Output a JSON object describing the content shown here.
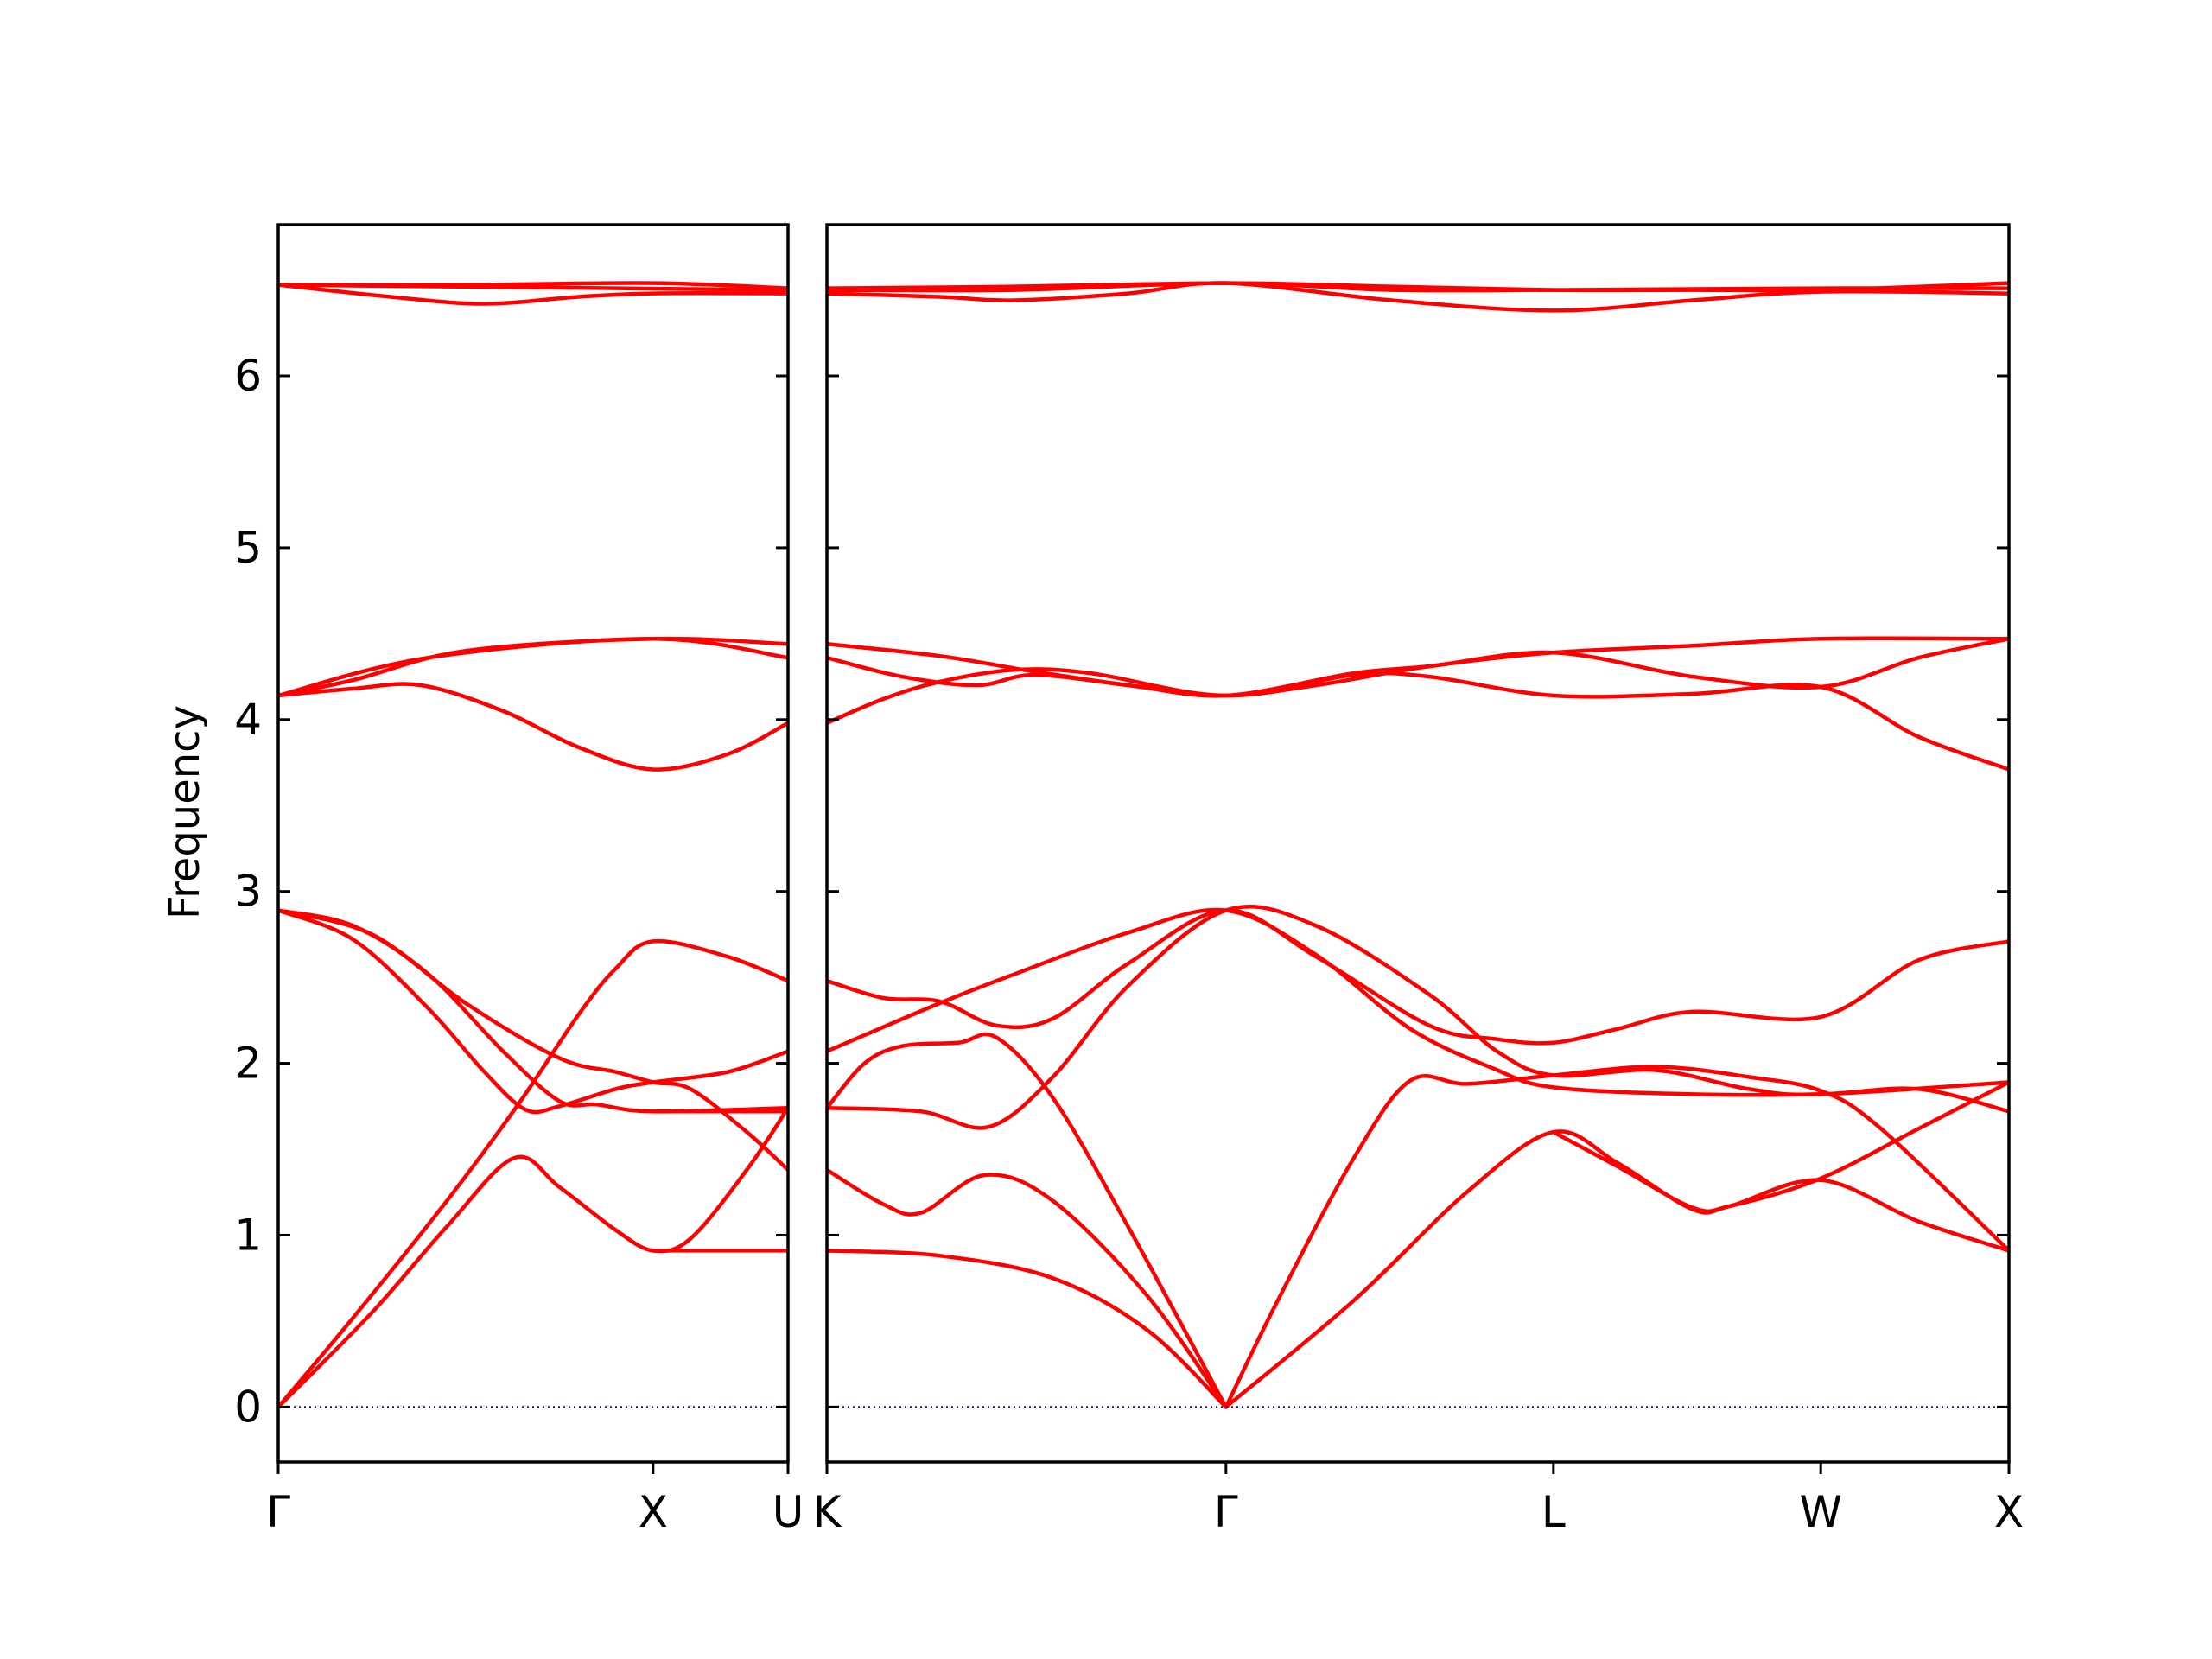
{
  "chart_data": {
    "type": "line",
    "title": "",
    "xlabel": "",
    "ylabel": "Frequency",
    "ylim": [
      -0.32,
      6.88
    ],
    "y_ticks": [
      0,
      1,
      2,
      3,
      4,
      5,
      6
    ],
    "grid": false,
    "legend": "none",
    "line_color": "#ff0000",
    "zero_line_color": "#0000aa",
    "panels": [
      {
        "name": "left",
        "x_range": [
          0,
          1.36
        ],
        "ticks": [
          {
            "x": 0,
            "label": "Γ"
          },
          {
            "x": 1.0,
            "label": "X"
          },
          {
            "x": 1.36,
            "label": "U"
          }
        ]
      },
      {
        "name": "right",
        "x_range": [
          0,
          3.14
        ],
        "ticks": [
          {
            "x": 0,
            "label": "K"
          },
          {
            "x": 1.06,
            "label": "Γ"
          },
          {
            "x": 1.93,
            "label": "L"
          },
          {
            "x": 2.64,
            "label": "W"
          },
          {
            "x": 3.14,
            "label": "X"
          }
        ]
      }
    ],
    "series": [
      {
        "panel": "left",
        "points": [
          [
            0,
            6.53
          ],
          [
            0.5,
            6.53
          ],
          [
            1.0,
            6.54
          ],
          [
            1.36,
            6.51
          ]
        ]
      },
      {
        "panel": "left",
        "points": [
          [
            0,
            6.53
          ],
          [
            0.3,
            6.46
          ],
          [
            0.55,
            6.42
          ],
          [
            0.8,
            6.46
          ],
          [
            1.0,
            6.48
          ],
          [
            1.36,
            6.48
          ]
        ]
      },
      {
        "panel": "left",
        "points": [
          [
            0,
            6.53
          ],
          [
            1.36,
            6.5
          ]
        ]
      },
      {
        "panel": "left",
        "points": [
          [
            0,
            4.14
          ],
          [
            0.2,
            4.23
          ],
          [
            0.5,
            4.4
          ],
          [
            1.0,
            4.47
          ],
          [
            1.36,
            4.44
          ]
        ]
      },
      {
        "panel": "left",
        "points": [
          [
            0,
            4.14
          ],
          [
            0.4,
            4.36
          ],
          [
            1.0,
            4.47
          ],
          [
            1.36,
            4.36
          ]
        ]
      },
      {
        "panel": "left",
        "points": [
          [
            0,
            4.14
          ],
          [
            0.2,
            4.18
          ],
          [
            0.38,
            4.2
          ],
          [
            0.6,
            4.05
          ],
          [
            0.8,
            3.84
          ],
          [
            1.0,
            3.71
          ],
          [
            1.2,
            3.8
          ],
          [
            1.36,
            3.98
          ]
        ]
      },
      {
        "panel": "left",
        "points": [
          [
            0,
            0.0
          ],
          [
            0.2,
            0.52
          ],
          [
            0.45,
            1.2
          ],
          [
            0.64,
            1.76
          ],
          [
            0.8,
            2.28
          ],
          [
            0.9,
            2.55
          ],
          [
            1.0,
            2.71
          ],
          [
            1.2,
            2.62
          ],
          [
            1.36,
            2.48
          ]
        ]
      },
      {
        "panel": "left",
        "points": [
          [
            0,
            0.0
          ],
          [
            0.25,
            0.55
          ],
          [
            0.45,
            1.05
          ],
          [
            0.63,
            1.45
          ],
          [
            0.75,
            1.28
          ],
          [
            0.9,
            1.03
          ],
          [
            1.0,
            0.91
          ],
          [
            1.1,
            0.98
          ],
          [
            1.25,
            1.38
          ],
          [
            1.36,
            1.74
          ]
        ]
      },
      {
        "panel": "left",
        "points": [
          [
            0,
            2.89
          ],
          [
            0.2,
            2.8
          ],
          [
            0.4,
            2.52
          ],
          [
            0.6,
            2.07
          ],
          [
            0.75,
            1.78
          ],
          [
            0.85,
            1.76
          ],
          [
            1.0,
            1.72
          ],
          [
            1.36,
            1.74
          ]
        ]
      },
      {
        "panel": "left",
        "points": [
          [
            0,
            2.89
          ],
          [
            0.2,
            2.72
          ],
          [
            0.4,
            2.32
          ],
          [
            0.55,
            1.95
          ],
          [
            0.66,
            1.73
          ],
          [
            0.75,
            1.75
          ],
          [
            0.9,
            1.85
          ],
          [
            1.0,
            1.89
          ],
          [
            1.2,
            1.95
          ],
          [
            1.36,
            2.07
          ]
        ]
      },
      {
        "panel": "left",
        "points": [
          [
            0,
            2.89
          ],
          [
            0.25,
            2.75
          ],
          [
            0.5,
            2.35
          ],
          [
            0.75,
            2.03
          ],
          [
            0.9,
            1.95
          ],
          [
            1.0,
            1.89
          ],
          [
            1.1,
            1.85
          ],
          [
            1.25,
            1.6
          ],
          [
            1.36,
            1.38
          ]
        ]
      },
      {
        "panel": "left",
        "points": [
          [
            0,
            0.0
          ],
          [
            1.0,
            0.0
          ],
          [
            1.36,
            0.0
          ]
        ],
        "style": "dotted"
      },
      {
        "panel": "left",
        "points": [
          [
            1.0,
            0.91
          ],
          [
            1.36,
            0.91
          ]
        ]
      },
      {
        "panel": "left",
        "points": [
          [
            1.0,
            1.72
          ],
          [
            1.36,
            1.72
          ]
        ]
      },
      {
        "panel": "right",
        "points": [
          [
            0,
            6.51
          ],
          [
            0.5,
            6.52
          ],
          [
            1.06,
            6.54
          ],
          [
            1.5,
            6.52
          ],
          [
            1.93,
            6.5
          ],
          [
            2.3,
            6.5
          ],
          [
            2.64,
            6.5
          ],
          [
            3.14,
            6.54
          ]
        ]
      },
      {
        "panel": "right",
        "points": [
          [
            0,
            6.48
          ],
          [
            0.3,
            6.46
          ],
          [
            0.5,
            6.44
          ],
          [
            0.8,
            6.48
          ],
          [
            1.06,
            6.54
          ],
          [
            1.5,
            6.44
          ],
          [
            1.93,
            6.38
          ],
          [
            2.3,
            6.44
          ],
          [
            2.64,
            6.49
          ],
          [
            3.14,
            6.48
          ]
        ]
      },
      {
        "panel": "right",
        "points": [
          [
            0,
            6.5
          ],
          [
            0.5,
            6.5
          ],
          [
            1.06,
            6.54
          ],
          [
            1.5,
            6.5
          ],
          [
            1.93,
            6.5
          ],
          [
            2.64,
            6.51
          ],
          [
            3.14,
            6.51
          ]
        ]
      },
      {
        "panel": "right",
        "points": [
          [
            0,
            4.44
          ],
          [
            0.3,
            4.37
          ],
          [
            0.55,
            4.28
          ],
          [
            0.8,
            4.2
          ],
          [
            1.06,
            4.14
          ],
          [
            1.3,
            4.2
          ],
          [
            1.6,
            4.31
          ],
          [
            1.93,
            4.39
          ],
          [
            2.3,
            4.43
          ],
          [
            2.64,
            4.47
          ],
          [
            3.14,
            4.47
          ]
        ]
      },
      {
        "panel": "right",
        "points": [
          [
            0,
            4.36
          ],
          [
            0.2,
            4.25
          ],
          [
            0.4,
            4.2
          ],
          [
            0.55,
            4.26
          ],
          [
            0.8,
            4.2
          ],
          [
            1.06,
            4.14
          ],
          [
            1.4,
            4.27
          ],
          [
            1.6,
            4.31
          ],
          [
            1.93,
            4.39
          ],
          [
            2.3,
            4.25
          ],
          [
            2.64,
            4.19
          ],
          [
            2.9,
            4.36
          ],
          [
            3.14,
            4.47
          ]
        ]
      },
      {
        "panel": "right",
        "points": [
          [
            0,
            3.98
          ],
          [
            0.15,
            4.12
          ],
          [
            0.3,
            4.22
          ],
          [
            0.5,
            4.29
          ],
          [
            0.7,
            4.27
          ],
          [
            1.06,
            4.14
          ],
          [
            1.4,
            4.26
          ],
          [
            1.6,
            4.25
          ],
          [
            1.93,
            4.14
          ],
          [
            2.3,
            4.15
          ],
          [
            2.64,
            4.19
          ],
          [
            2.9,
            3.9
          ],
          [
            3.14,
            3.71
          ]
        ]
      },
      {
        "panel": "right",
        "points": [
          [
            0,
            2.48
          ],
          [
            0.15,
            2.38
          ],
          [
            0.3,
            2.36
          ],
          [
            0.45,
            2.22
          ],
          [
            0.6,
            2.26
          ],
          [
            0.8,
            2.58
          ],
          [
            1.06,
            2.89
          ],
          [
            1.3,
            2.62
          ],
          [
            1.6,
            2.22
          ],
          [
            1.78,
            2.14
          ],
          [
            1.93,
            2.12
          ],
          [
            2.1,
            2.2
          ],
          [
            2.3,
            2.3
          ],
          [
            2.64,
            2.27
          ],
          [
            2.9,
            2.6
          ],
          [
            3.14,
            2.71
          ]
        ]
      },
      {
        "panel": "right",
        "points": [
          [
            0,
            2.07
          ],
          [
            0.3,
            2.35
          ],
          [
            0.5,
            2.52
          ],
          [
            0.8,
            2.76
          ],
          [
            1.06,
            2.89
          ],
          [
            1.3,
            2.63
          ],
          [
            1.55,
            2.2
          ],
          [
            1.77,
            1.97
          ],
          [
            1.93,
            1.86
          ],
          [
            2.3,
            1.82
          ],
          [
            2.64,
            1.82
          ],
          [
            2.9,
            1.85
          ],
          [
            3.14,
            1.72
          ]
        ]
      },
      {
        "panel": "right",
        "points": [
          [
            0,
            1.74
          ],
          [
            0.25,
            1.72
          ],
          [
            0.43,
            1.63
          ],
          [
            0.6,
            1.92
          ],
          [
            0.8,
            2.45
          ],
          [
            1.06,
            2.89
          ],
          [
            1.3,
            2.8
          ],
          [
            1.6,
            2.4
          ],
          [
            1.78,
            2.07
          ],
          [
            1.93,
            1.93
          ],
          [
            2.2,
            1.96
          ],
          [
            2.45,
            1.85
          ],
          [
            2.64,
            1.82
          ],
          [
            3.14,
            1.89
          ]
        ]
      },
      {
        "panel": "right",
        "points": [
          [
            0,
            1.38
          ],
          [
            0.15,
            1.18
          ],
          [
            0.25,
            1.13
          ],
          [
            0.42,
            1.35
          ],
          [
            0.6,
            1.2
          ],
          [
            0.85,
            0.65
          ],
          [
            1.06,
            0.0
          ]
        ]
      },
      {
        "panel": "right",
        "points": [
          [
            0,
            0.91
          ],
          [
            0.3,
            0.88
          ],
          [
            0.6,
            0.75
          ],
          [
            0.85,
            0.45
          ],
          [
            1.06,
            0.0
          ]
        ]
      },
      {
        "panel": "right",
        "points": [
          [
            0,
            1.74
          ],
          [
            0.1,
            2.0
          ],
          [
            0.2,
            2.1
          ],
          [
            0.35,
            2.12
          ],
          [
            0.45,
            2.15
          ],
          [
            0.6,
            1.8
          ],
          [
            0.8,
            1.05
          ],
          [
            1.06,
            0.0
          ]
        ]
      },
      {
        "panel": "right",
        "points": [
          [
            1.06,
            0.0
          ],
          [
            1.2,
            0.63
          ],
          [
            1.4,
            1.45
          ],
          [
            1.55,
            1.9
          ],
          [
            1.7,
            1.88
          ],
          [
            1.93,
            1.93
          ],
          [
            2.2,
            1.98
          ],
          [
            2.45,
            1.92
          ],
          [
            2.64,
            1.84
          ],
          [
            2.8,
            1.62
          ],
          [
            3.14,
            0.91
          ]
        ]
      },
      {
        "panel": "right",
        "points": [
          [
            1.06,
            0.0
          ],
          [
            1.4,
            0.62
          ],
          [
            1.7,
            1.25
          ],
          [
            1.93,
            1.6
          ],
          [
            2.1,
            1.42
          ],
          [
            2.3,
            1.15
          ],
          [
            2.4,
            1.17
          ],
          [
            2.64,
            1.32
          ],
          [
            2.9,
            1.08
          ],
          [
            3.14,
            0.91
          ]
        ]
      },
      {
        "panel": "right",
        "points": [
          [
            1.93,
            1.6
          ],
          [
            2.1,
            1.4
          ],
          [
            2.3,
            1.16
          ],
          [
            2.4,
            1.17
          ],
          [
            2.64,
            1.33
          ],
          [
            2.9,
            1.62
          ],
          [
            3.14,
            1.89
          ]
        ]
      },
      {
        "panel": "right",
        "points": [
          [
            0,
            0.0
          ],
          [
            3.14,
            0.0
          ]
        ],
        "style": "dotted"
      }
    ]
  }
}
